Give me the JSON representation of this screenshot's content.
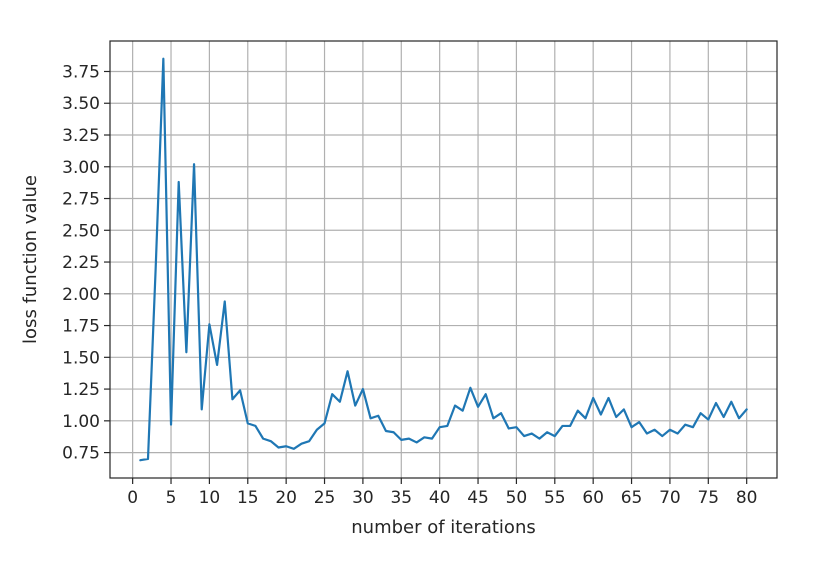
{
  "chart_data": {
    "type": "line",
    "title": "",
    "xlabel": "number of iterations",
    "ylabel": "loss function value",
    "xlim": [
      -2.95,
      83.95
    ],
    "ylim": [
      0.55,
      3.99
    ],
    "x_ticks": [
      0,
      5,
      10,
      15,
      20,
      25,
      30,
      35,
      40,
      45,
      50,
      55,
      60,
      65,
      70,
      75,
      80
    ],
    "x_tick_labels": [
      "0",
      "5",
      "10",
      "15",
      "20",
      "25",
      "30",
      "35",
      "40",
      "45",
      "50",
      "55",
      "60",
      "65",
      "70",
      "75",
      "80"
    ],
    "y_ticks": [
      0.75,
      1.0,
      1.25,
      1.5,
      1.75,
      2.0,
      2.25,
      2.5,
      2.75,
      3.0,
      3.25,
      3.5,
      3.75
    ],
    "y_tick_labels": [
      "0.75",
      "1.00",
      "1.25",
      "1.50",
      "1.75",
      "2.00",
      "2.25",
      "2.50",
      "2.75",
      "3.00",
      "3.25",
      "3.50",
      "3.75"
    ],
    "grid": true,
    "legend": false,
    "line_color": "#1f77b4",
    "grid_color": "#b0b0b0",
    "series": [
      {
        "x": [
          1,
          2,
          3,
          4,
          5,
          6,
          7,
          8,
          9,
          10,
          11,
          12,
          13,
          14,
          15,
          16,
          17,
          18,
          19,
          20,
          21,
          22,
          23,
          24,
          25,
          26,
          27,
          28,
          29,
          30,
          31,
          32,
          33,
          34,
          35,
          36,
          37,
          38,
          39,
          40,
          41,
          42,
          43,
          44,
          45,
          46,
          47,
          48,
          49,
          50,
          51,
          52,
          53,
          54,
          55,
          56,
          57,
          58,
          59,
          60,
          61,
          62,
          63,
          64,
          65,
          66,
          67,
          68,
          69,
          70,
          71,
          72,
          73,
          74,
          75,
          76,
          77,
          78,
          79,
          80
        ],
        "y": [
          0.69,
          0.7,
          2.2,
          3.85,
          0.97,
          2.88,
          1.54,
          3.02,
          1.09,
          1.76,
          1.44,
          1.94,
          1.17,
          1.24,
          0.98,
          0.96,
          0.86,
          0.84,
          0.79,
          0.8,
          0.78,
          0.82,
          0.84,
          0.93,
          0.98,
          1.21,
          1.15,
          1.39,
          1.12,
          1.25,
          1.02,
          1.04,
          0.92,
          0.91,
          0.85,
          0.86,
          0.83,
          0.87,
          0.86,
          0.95,
          0.96,
          1.12,
          1.08,
          1.26,
          1.11,
          1.21,
          1.02,
          1.06,
          0.94,
          0.95,
          0.88,
          0.9,
          0.86,
          0.91,
          0.88,
          0.96,
          0.96,
          1.08,
          1.02,
          1.18,
          1.05,
          1.18,
          1.03,
          1.09,
          0.95,
          0.99,
          0.9,
          0.93,
          0.88,
          0.93,
          0.9,
          0.97,
          0.95,
          1.06,
          1.01,
          1.14,
          1.03,
          1.15,
          1.02,
          1.09
        ]
      }
    ]
  }
}
